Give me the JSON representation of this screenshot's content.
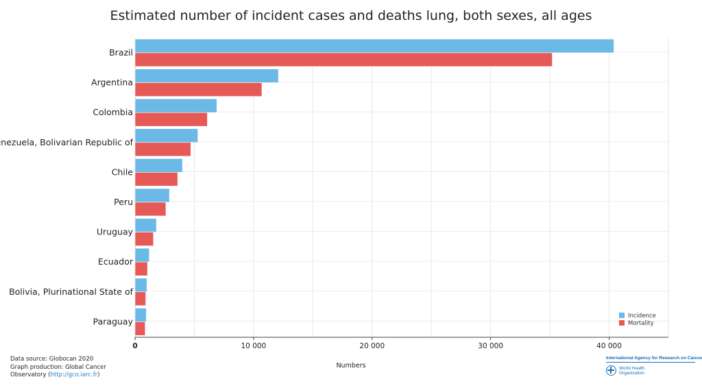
{
  "chart_data": {
    "type": "bar",
    "orientation": "horizontal",
    "title": "Estimated number of incident cases and deaths lung, both sexes, all ages",
    "xlabel": "Numbers",
    "ylabel": "",
    "xlim": [
      0,
      45000
    ],
    "x_ticks": [
      0,
      10000,
      20000,
      30000,
      40000
    ],
    "x_tick_labels": [
      "0",
      "10 000",
      "20 000",
      "30 000",
      "40 000"
    ],
    "grid": true,
    "legend_position": "bottom-right",
    "categories": [
      "Brazil",
      "Argentina",
      "Colombia",
      "Venezuela, Bolivarian Republic of",
      "Chile",
      "Peru",
      "Uruguay",
      "Ecuador",
      "Bolivia, Plurinational State of",
      "Paraguay"
    ],
    "series": [
      {
        "name": "Incidence",
        "color": "#6bb9e6",
        "values": [
          40400,
          12100,
          6900,
          5300,
          4000,
          2900,
          1800,
          1200,
          1000,
          950
        ]
      },
      {
        "name": "Mortality",
        "color": "#e55a56",
        "values": [
          35200,
          10700,
          6100,
          4700,
          3600,
          2600,
          1550,
          1050,
          900,
          850
        ]
      }
    ]
  },
  "footer": {
    "line1": "Data source: Globocan 2020",
    "line2": "Graph production: Global Cancer",
    "line3_prefix": "Observatory (",
    "link": "http://gco.iarc.fr",
    "line3_suffix": ")"
  },
  "logos": {
    "iarc": "International Agency for Research on Cancer",
    "who": "World Health Organization"
  }
}
